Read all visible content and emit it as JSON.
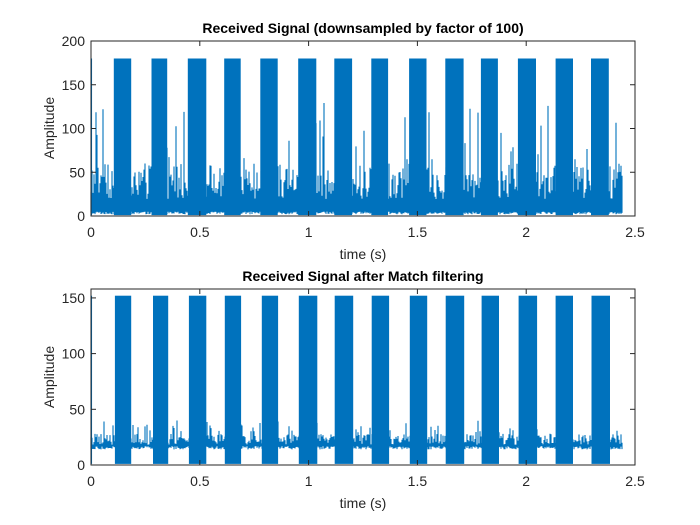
{
  "chart_data": [
    {
      "type": "line",
      "title": "Received Signal (downsampled by factor of 100)",
      "xlabel": "time (s)",
      "ylabel": "Amplitude",
      "xlim": [
        0,
        2.5
      ],
      "ylim": [
        0,
        200
      ],
      "xticks": [
        0,
        0.5,
        1,
        1.5,
        2,
        2.5
      ],
      "xtick_labels": [
        "0",
        "0.5",
        "1",
        "1.5",
        "2",
        "2.5"
      ],
      "yticks": [
        0,
        50,
        100,
        150,
        200
      ],
      "ytick_labels": [
        "0",
        "50",
        "100",
        "150",
        "200"
      ],
      "grid": false,
      "legend": "none",
      "signal_extent_s": [
        0,
        2.44
      ],
      "pulse_high_level": 180,
      "noise_floor_range": [
        2,
        60
      ],
      "noise_peak_range": [
        60,
        130
      ],
      "pulses": [
        {
          "start": 0.105,
          "end": 0.185
        },
        {
          "start": 0.278,
          "end": 0.35
        },
        {
          "start": 0.445,
          "end": 0.53
        },
        {
          "start": 0.612,
          "end": 0.688
        },
        {
          "start": 0.778,
          "end": 0.858
        },
        {
          "start": 0.952,
          "end": 1.035
        },
        {
          "start": 1.118,
          "end": 1.2
        },
        {
          "start": 1.288,
          "end": 1.365
        },
        {
          "start": 1.462,
          "end": 1.542
        },
        {
          "start": 1.628,
          "end": 1.712
        },
        {
          "start": 1.792,
          "end": 1.87
        },
        {
          "start": 1.962,
          "end": 2.045
        },
        {
          "start": 2.135,
          "end": 2.215
        },
        {
          "start": 2.298,
          "end": 2.38
        }
      ],
      "line_color": "#0072BD"
    },
    {
      "type": "line",
      "title": "Received Signal after Match filtering",
      "xlabel": "time (s)",
      "ylabel": "Amplitude",
      "xlim": [
        0,
        2.5
      ],
      "ylim": [
        0,
        158
      ],
      "xticks": [
        0,
        0.5,
        1,
        1.5,
        2,
        2.5
      ],
      "xtick_labels": [
        "0",
        "0.5",
        "1",
        "1.5",
        "2",
        "2.5"
      ],
      "yticks": [
        0,
        50,
        100,
        150
      ],
      "ytick_labels": [
        "0",
        "50",
        "100",
        "150"
      ],
      "grid": false,
      "legend": "none",
      "signal_extent_s": [
        0,
        2.44
      ],
      "pulse_high_level": 152,
      "noise_floor_range": [
        14,
        28
      ],
      "noise_peak_range": [
        28,
        40
      ],
      "pulses": [
        {
          "start": 0.11,
          "end": 0.185
        },
        {
          "start": 0.285,
          "end": 0.355
        },
        {
          "start": 0.45,
          "end": 0.53
        },
        {
          "start": 0.615,
          "end": 0.69
        },
        {
          "start": 0.785,
          "end": 0.86
        },
        {
          "start": 0.955,
          "end": 1.04
        },
        {
          "start": 1.12,
          "end": 1.205
        },
        {
          "start": 1.29,
          "end": 1.37
        },
        {
          "start": 1.465,
          "end": 1.545
        },
        {
          "start": 1.63,
          "end": 1.715
        },
        {
          "start": 1.795,
          "end": 1.875
        },
        {
          "start": 1.965,
          "end": 2.05
        },
        {
          "start": 2.135,
          "end": 2.215
        },
        {
          "start": 2.3,
          "end": 2.385
        }
      ],
      "line_color": "#0072BD"
    }
  ]
}
